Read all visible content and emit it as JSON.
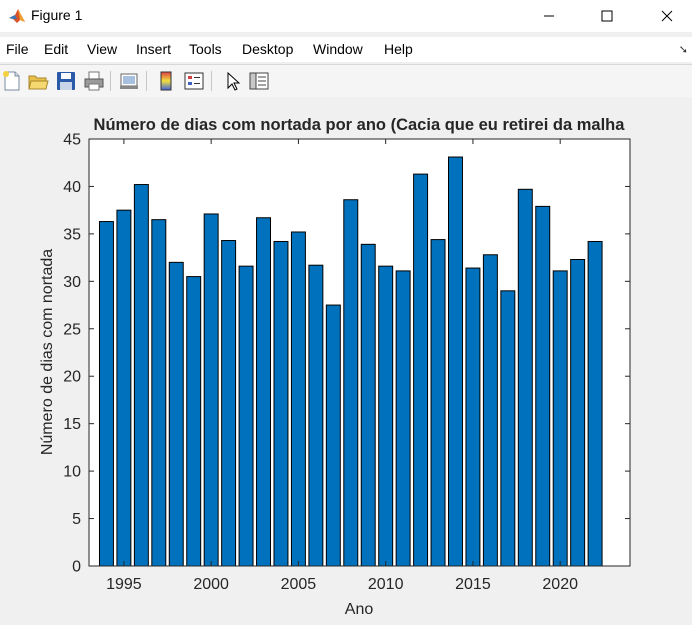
{
  "window": {
    "title": "Figure 1"
  },
  "menu": {
    "items": [
      "File",
      "Edit",
      "View",
      "Insert",
      "Tools",
      "Desktop",
      "Window",
      "Help"
    ]
  },
  "toolbar": {
    "icons": [
      "new-figure-icon",
      "open-file-icon",
      "save-icon",
      "print-icon",
      "link-plot-icon",
      "colorbar-icon",
      "legend-icon",
      "pointer-icon",
      "property-editor-icon"
    ]
  },
  "colors": {
    "bar_fill": "#0072BD",
    "bar_edge": "#000000",
    "axes_bg": "#ffffff",
    "figure_bg": "#f0f0f0"
  },
  "chart_data": {
    "type": "bar",
    "title": "Número de dias com nortada por ano (Cacia que eu retirei da malha",
    "xlabel": "Ano",
    "ylabel": "Número de dias com nortada",
    "x": [
      1994,
      1995,
      1996,
      1997,
      1998,
      1999,
      2000,
      2001,
      2002,
      2003,
      2004,
      2005,
      2006,
      2007,
      2008,
      2009,
      2010,
      2011,
      2012,
      2013,
      2014,
      2015,
      2016,
      2017,
      2018,
      2019,
      2020,
      2021,
      2022
    ],
    "values": [
      36.3,
      37.5,
      40.2,
      36.5,
      32.0,
      30.5,
      37.1,
      34.3,
      31.6,
      36.7,
      34.2,
      35.2,
      31.7,
      27.5,
      38.6,
      33.9,
      31.6,
      31.1,
      41.3,
      34.4,
      43.1,
      31.4,
      32.8,
      29.0,
      39.7,
      37.9,
      31.1,
      32.3,
      34.2
    ],
    "xlim": [
      1993,
      2024
    ],
    "ylim": [
      0,
      45
    ],
    "xticks": [
      "1995",
      "2000",
      "2005",
      "2010",
      "2015",
      "2020"
    ],
    "xtick_values": [
      1995,
      2000,
      2005,
      2010,
      2015,
      2020
    ],
    "yticks": [
      "0",
      "5",
      "10",
      "15",
      "20",
      "25",
      "30",
      "35",
      "40",
      "45"
    ],
    "ytick_values": [
      0,
      5,
      10,
      15,
      20,
      25,
      30,
      35,
      40,
      45
    ],
    "grid": false,
    "bar_width": 0.8
  }
}
